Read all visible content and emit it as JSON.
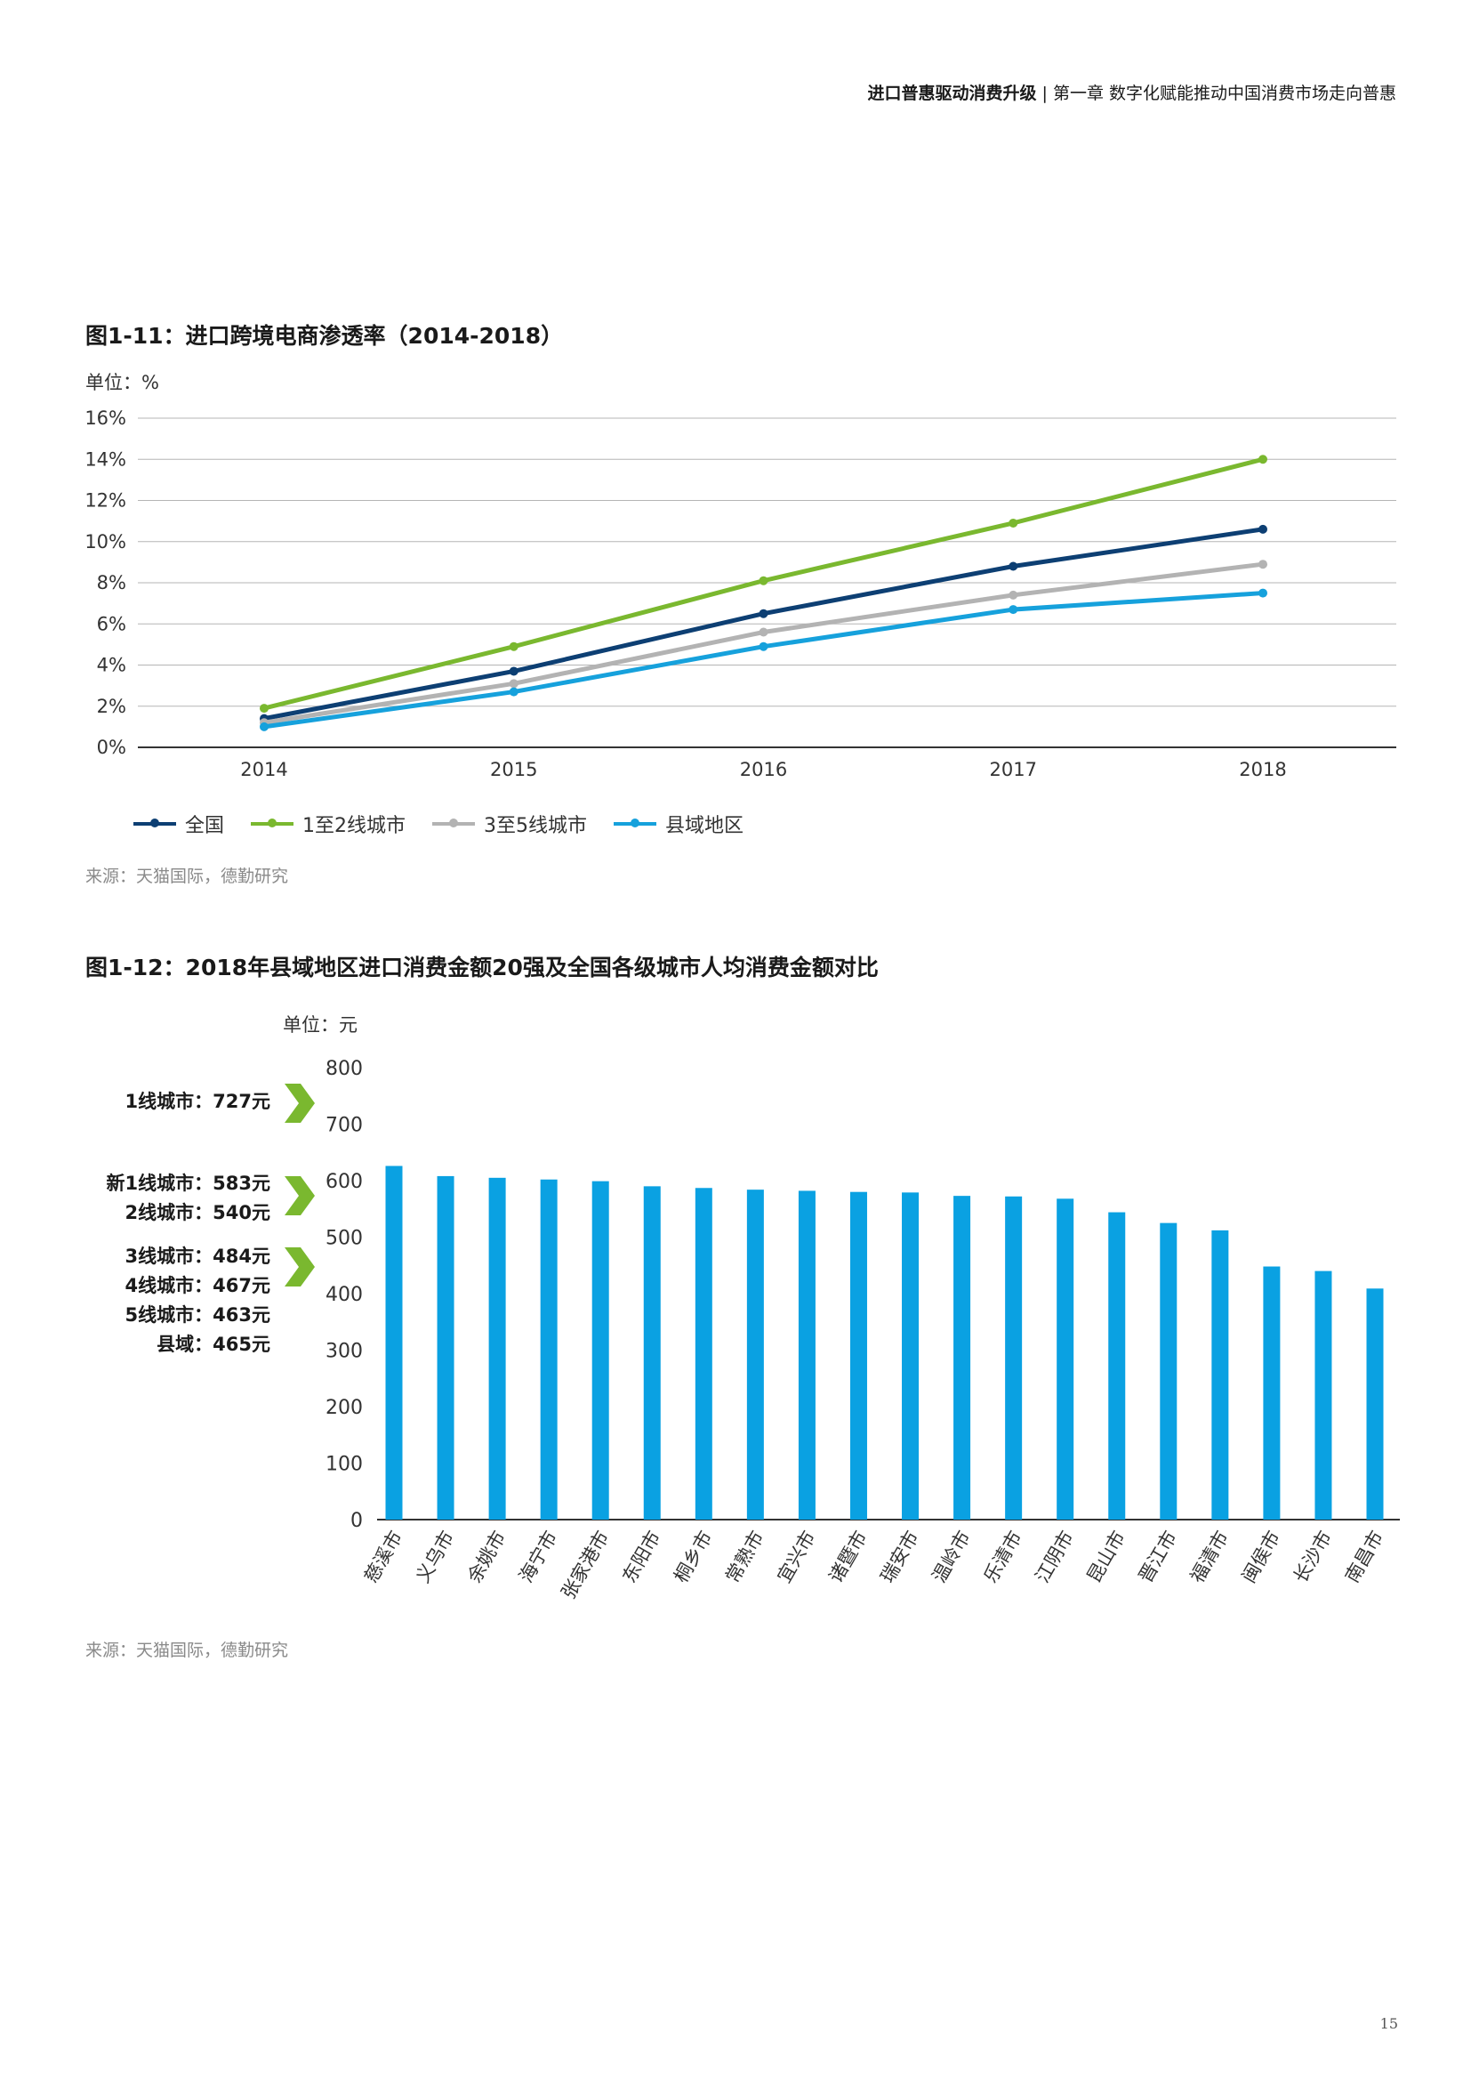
{
  "header": {
    "bold_part": "进口普惠驱动消费升级",
    "separator": "|",
    "rest": "第一章 数字化赋能推动中国消费市场走向普惠"
  },
  "figure1": {
    "title": "图1-11：进口跨境电商渗透率（2014-2018）",
    "unit": "单位：%",
    "source": "来源：天猫国际，德勤研究"
  },
  "figure2": {
    "title": "图1-12：2018年县域地区进口消费金额20强及全国各级城市人均消费金额对比",
    "unit": "单位：元",
    "source": "来源：天猫国际，德勤研究",
    "tiers": [
      {
        "label": "1线城市：727元"
      },
      {
        "label": "新1线城市：583元"
      },
      {
        "label": "2线城市：540元"
      },
      {
        "label": "3线城市：484元"
      },
      {
        "label": "4线城市：467元"
      },
      {
        "label": "5线城市：463元"
      },
      {
        "label": "县域：465元"
      }
    ]
  },
  "colors": {
    "national": "#0d3f73",
    "tier12": "#7ab82f",
    "tier35": "#b3b3b3",
    "county": "#16a1dc",
    "bar": "#0aa1e2",
    "chevron": "#7ab82f"
  },
  "chart_data": [
    {
      "type": "line",
      "title": "图1-11：进口跨境电商渗透率（2014-2018）",
      "ylabel": "单位：%",
      "x": [
        "2014",
        "2015",
        "2016",
        "2017",
        "2018"
      ],
      "ylim": [
        0,
        16
      ],
      "yticks": [
        "0%",
        "2%",
        "4%",
        "6%",
        "8%",
        "10%",
        "12%",
        "14%",
        "16%"
      ],
      "grid": true,
      "legend": "bottom-left",
      "series": [
        {
          "name": "全国",
          "values": [
            1.4,
            3.7,
            6.5,
            8.8,
            10.6
          ]
        },
        {
          "name": "1至2线城市",
          "values": [
            1.9,
            4.9,
            8.1,
            10.9,
            14.0
          ]
        },
        {
          "name": "3至5线城市",
          "values": [
            1.2,
            3.1,
            5.6,
            7.4,
            8.9
          ]
        },
        {
          "name": "县域地区",
          "values": [
            1.0,
            2.7,
            4.9,
            6.7,
            7.5
          ]
        }
      ]
    },
    {
      "type": "bar",
      "title": "图1-12：2018年县域地区进口消费金额20强及全国各级城市人均消费金额对比",
      "ylabel": "单位：元",
      "ylim": [
        0,
        800
      ],
      "yticks": [
        "0",
        "100",
        "200",
        "300",
        "400",
        "500",
        "600",
        "700",
        "800"
      ],
      "categories": [
        "慈溪市",
        "义乌市",
        "余姚市",
        "海宁市",
        "张家港市",
        "东阳市",
        "桐乡市",
        "常熟市",
        "宜兴市",
        "诸暨市",
        "瑞安市",
        "温岭市",
        "乐清市",
        "江阴市",
        "昆山市",
        "晋江市",
        "福清市",
        "闽侯市",
        "长沙市",
        "南昌市"
      ],
      "values": [
        626,
        608,
        605,
        602,
        599,
        590,
        587,
        584,
        582,
        580,
        579,
        573,
        572,
        568,
        544,
        525,
        512,
        448,
        440,
        409
      ]
    }
  ],
  "page_number": "15"
}
